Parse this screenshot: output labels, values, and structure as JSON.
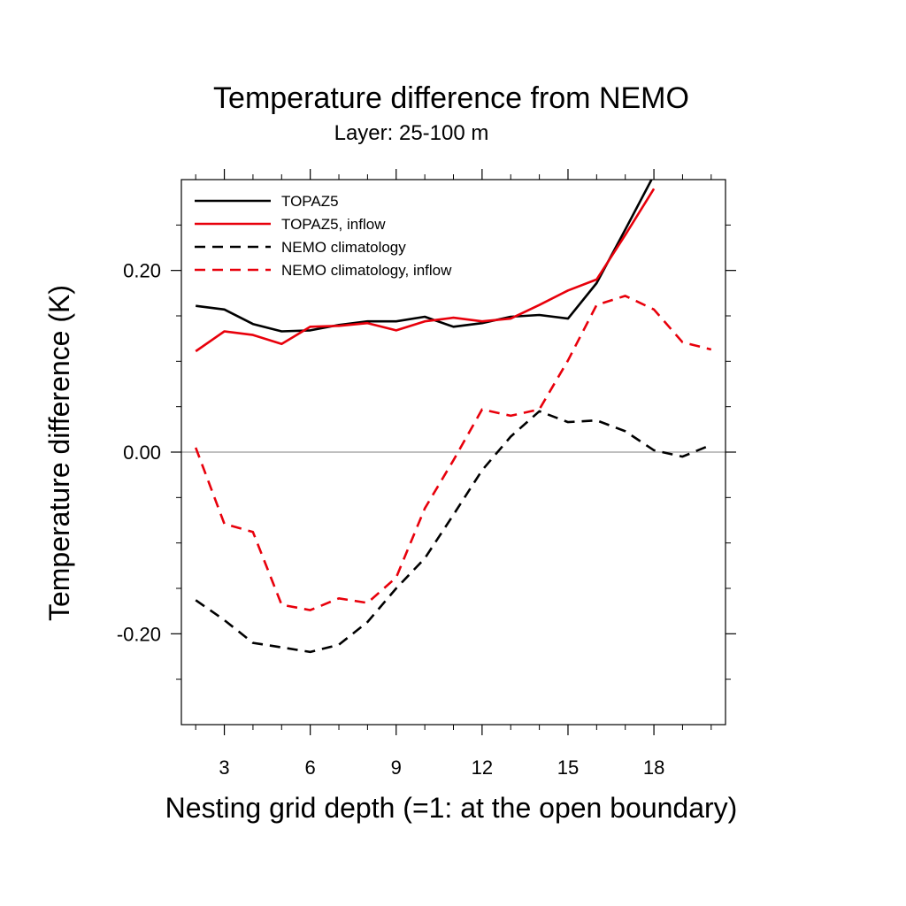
{
  "chart_data": {
    "type": "line",
    "title": "Temperature difference from NEMO",
    "subtitle": "Layer: 25-100 m",
    "xlabel": "Nesting grid depth (=1: at the open boundary)",
    "ylabel": "Temperature difference (K)",
    "xlim": [
      1.5,
      20.5
    ],
    "ylim": [
      -0.3,
      0.3
    ],
    "xticks": [
      3,
      6,
      9,
      12,
      15,
      18
    ],
    "xtick_labels": [
      "3",
      "6",
      "9",
      "12",
      "15",
      "18"
    ],
    "yticks": [
      -0.2,
      0.0,
      0.2
    ],
    "ytick_labels": [
      "-0.20",
      "0.00",
      "0.20"
    ],
    "zero_line": true,
    "grid": false,
    "legend_position": "top-left",
    "x": [
      2,
      3,
      4,
      5,
      6,
      7,
      8,
      9,
      10,
      11,
      12,
      13,
      14,
      15,
      16,
      17,
      18,
      19,
      20
    ],
    "series": [
      {
        "name": "TOPAZ5",
        "color": "#000000",
        "dash": "solid",
        "values": [
          0.161,
          0.157,
          0.141,
          0.133,
          0.134,
          0.14,
          0.144,
          0.144,
          0.149,
          0.138,
          0.142,
          0.149,
          0.151,
          0.147,
          0.186,
          0.245,
          0.305,
          null,
          null
        ]
      },
      {
        "name": "TOPAZ5, inflow",
        "color": "#e8000b",
        "dash": "solid",
        "values": [
          0.111,
          0.133,
          0.129,
          0.119,
          0.138,
          0.139,
          0.142,
          0.134,
          0.144,
          0.148,
          0.144,
          0.147,
          0.162,
          0.178,
          0.19,
          0.239,
          0.29,
          null,
          null
        ]
      },
      {
        "name": "NEMO climatology",
        "color": "#000000",
        "dash": "dashed",
        "values": [
          -0.163,
          -0.185,
          -0.21,
          -0.215,
          -0.22,
          -0.212,
          -0.187,
          -0.15,
          -0.117,
          -0.069,
          -0.02,
          0.017,
          0.045,
          0.033,
          0.035,
          0.023,
          0.002,
          -0.005,
          0.008
        ]
      },
      {
        "name": "NEMO climatology, inflow",
        "color": "#e8000b",
        "dash": "dashed",
        "values": [
          0.005,
          -0.079,
          -0.088,
          -0.168,
          -0.174,
          -0.161,
          -0.166,
          -0.138,
          -0.062,
          -0.009,
          0.047,
          0.04,
          0.047,
          0.101,
          0.162,
          0.172,
          0.157,
          0.121,
          0.113
        ]
      }
    ]
  }
}
